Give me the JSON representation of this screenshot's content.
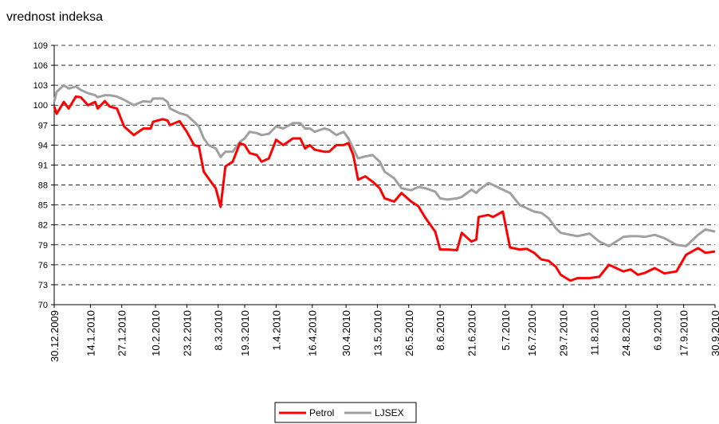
{
  "chart_data": {
    "type": "line",
    "title": "vrednost indeksa",
    "x": [
      "30.12.2009",
      "31.12.2009",
      "3.1.2010",
      "5.1.2010",
      "8.1.2010",
      "10.1.2010",
      "13.1.2010",
      "16.1.2010",
      "17.1.2010",
      "20.1.2010",
      "22.1.2010",
      "25.1.2010",
      "28.1.2010",
      "1.2.2010",
      "5.2.2010",
      "8.2.2010",
      "9.2.2010",
      "13.2.2010",
      "15.2.2010",
      "16.2.2010",
      "20.2.2010",
      "23.2.2010",
      "26.2.2010",
      "28.2.2010",
      "2.3.2010",
      "4.3.2010",
      "7.3.2010",
      "9.3.2010",
      "11.3.2010",
      "14.3.2010",
      "17.3.2010",
      "19.3.2010",
      "21.3.2010",
      "24.3.2010",
      "26.3.2010",
      "29.3.2010",
      "1.4.2010",
      "4.4.2010",
      "8.4.2010",
      "11.4.2010",
      "13.4.2010",
      "15.4.2010",
      "17.4.2010",
      "21.4.2010",
      "23.4.2010",
      "26.4.2010",
      "29.4.2010",
      "1.5.2010",
      "3.5.2010",
      "5.5.2010",
      "8.5.2010",
      "11.5.2010",
      "14.5.2010",
      "16.5.2010",
      "20.5.2010",
      "23.5.2010",
      "27.5.2010",
      "30.5.2010",
      "2.6.2010",
      "6.6.2010",
      "8.6.2010",
      "11.6.2010",
      "15.6.2010",
      "17.6.2010",
      "21.6.2010",
      "23.6.2010",
      "24.6.2010",
      "28.6.2010",
      "30.6.2010",
      "4.7.2010",
      "7.7.2010",
      "11.7.2010",
      "14.7.2010",
      "17.7.2010",
      "20.7.2010",
      "23.7.2010",
      "26.7.2010",
      "28.7.2010",
      "1.8.2010",
      "4.8.2010",
      "9.8.2010",
      "13.8.2010",
      "17.8.2010",
      "20.8.2010",
      "23.8.2010",
      "26.8.2010",
      "29.8.2010",
      "1.9.2010",
      "5.9.2010",
      "9.9.2010",
      "14.9.2010",
      "18.9.2010",
      "23.9.2010",
      "26.9.2010",
      "30.9.2010"
    ],
    "series": [
      {
        "name": "Petrol",
        "color": "#ff0000",
        "values": [
          99.8,
          98.7,
          100.5,
          99.5,
          101.3,
          101.2,
          100,
          100.5,
          99.5,
          100.6,
          99.8,
          99.5,
          96.8,
          95.5,
          96.5,
          96.5,
          97.5,
          97.9,
          97.7,
          97,
          97.6,
          96,
          94,
          93.8,
          90,
          89,
          87.5,
          84.7,
          90.8,
          91.5,
          94.3,
          94,
          92.8,
          92.5,
          91.5,
          92,
          94.8,
          94,
          95,
          95,
          93.5,
          94,
          93.3,
          93,
          93,
          94,
          94,
          94.3,
          92.5,
          88.8,
          89.3,
          88.5,
          87.5,
          86,
          85.5,
          86.8,
          85.5,
          84.8,
          83,
          81,
          78.3,
          78.3,
          78.2,
          80.8,
          79.5,
          79.8,
          83.2,
          83.5,
          83.2,
          84,
          78.6,
          78.3,
          78.4,
          77.8,
          76.8,
          76.6,
          75.7,
          74.5,
          73.6,
          74,
          74,
          74.2,
          76,
          75.5,
          75,
          75.3,
          74.5,
          74.8,
          75.5,
          74.7,
          75,
          77.5,
          78.5,
          77.8,
          78
        ]
      },
      {
        "name": "LJSEX",
        "color": "#a0a0a0",
        "values": [
          100.5,
          102,
          103,
          102.5,
          102.8,
          102.3,
          101.8,
          101.5,
          101.2,
          101.5,
          101.5,
          101.3,
          100.8,
          100,
          100.6,
          100.5,
          101,
          101,
          100.5,
          99.5,
          98.8,
          98.5,
          97.5,
          96.8,
          95,
          94,
          93.5,
          92.2,
          93,
          93,
          94.5,
          95,
          96,
          95.8,
          95.5,
          95.7,
          96.8,
          96.5,
          97.3,
          97.3,
          96.5,
          96.5,
          96,
          96.5,
          96.3,
          95.5,
          96,
          95,
          93.5,
          92,
          92.3,
          92.5,
          91.5,
          90,
          89,
          87.5,
          87.2,
          87.7,
          87.5,
          87,
          86,
          85.8,
          86,
          86.2,
          87.3,
          86.8,
          87.2,
          88.3,
          88,
          87.3,
          86.8,
          85,
          84.5,
          84,
          83.8,
          83,
          81.5,
          80.8,
          80.5,
          80.3,
          80.7,
          79.5,
          78.8,
          79.5,
          80.2,
          80.3,
          80.3,
          80.2,
          80.5,
          80,
          79,
          78.8,
          80.5,
          81.3,
          81
        ]
      }
    ],
    "xlim": [
      "30.12.2009",
      "30.9.2010"
    ],
    "xticks": [
      "30.12.2009",
      "14.1.2010",
      "27.1.2010",
      "10.2.2010",
      "23.2.2010",
      "8.3.2010",
      "19.3.2010",
      "1.4.2010",
      "16.4.2010",
      "30.4.2010",
      "13.5.2010",
      "26.5.2010",
      "8.6.2010",
      "21.6.2010",
      "5.7.2010",
      "16.7.2010",
      "29.7.2010",
      "11.8.2010",
      "24.8.2010",
      "6.9.2010",
      "17.9.2010",
      "30.9.2010"
    ],
    "ylim": [
      70,
      109
    ],
    "yticks": [
      70,
      73,
      76,
      79,
      82,
      85,
      88,
      91,
      94,
      97,
      100,
      103,
      106,
      109
    ],
    "grid": true
  }
}
